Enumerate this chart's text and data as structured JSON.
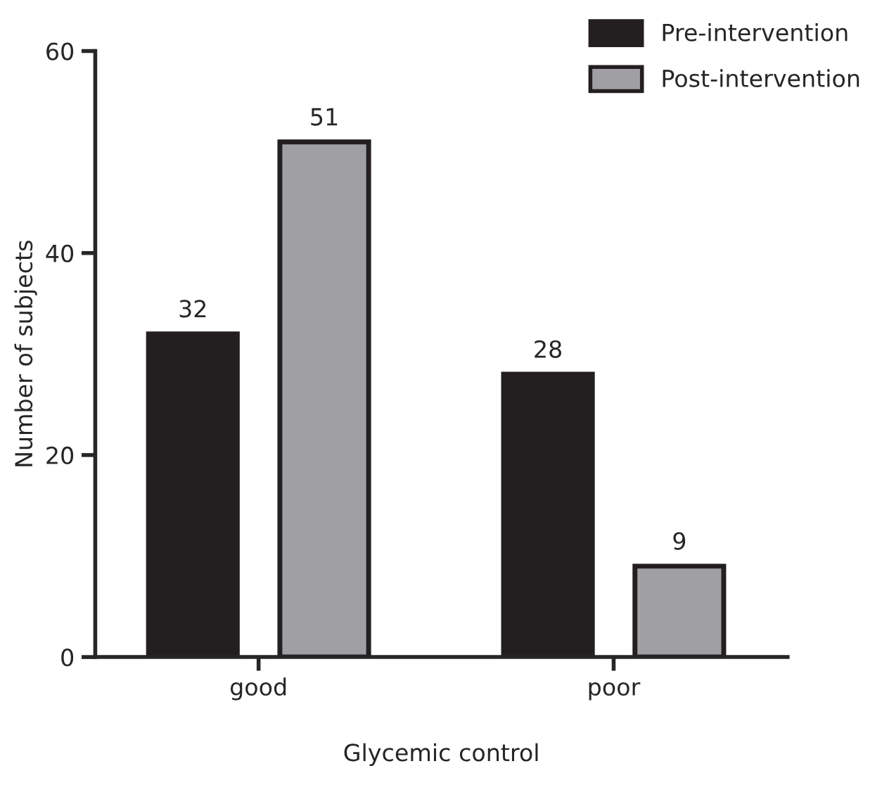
{
  "chart_data": {
    "type": "bar",
    "xlabel": "Glycemic control",
    "ylabel": "Number of subjects",
    "categories": [
      "good",
      "poor"
    ],
    "series": [
      {
        "name": "Pre-intervention",
        "color": "#231f20",
        "values": [
          32,
          28
        ]
      },
      {
        "name": "Post-intervention",
        "color": "#a0a0a4",
        "values": [
          51,
          9
        ]
      }
    ],
    "ylim": [
      0,
      60
    ],
    "yticks": [
      0,
      20,
      40,
      60
    ],
    "data_labels": true,
    "legend": "top right"
  }
}
